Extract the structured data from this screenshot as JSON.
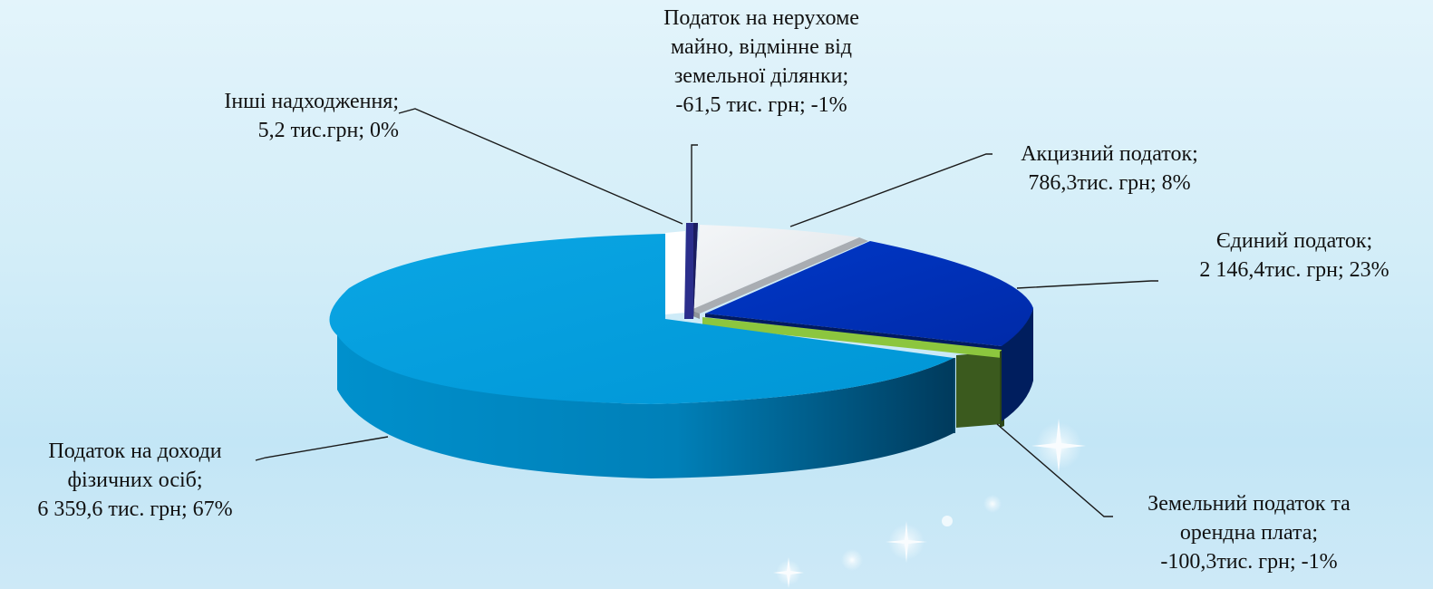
{
  "chart_data": {
    "type": "pie",
    "style": "3d-exploded",
    "unit": "тис. грн",
    "slices": [
      {
        "key": "pdfo",
        "value": 6359.6,
        "percent": 67,
        "color": "#00a0de",
        "label_lines": [
          "Податок на доходи",
          "фізичних осіб;",
          "6 359,6 тис. грн; 67%"
        ]
      },
      {
        "key": "other",
        "value": 5.2,
        "percent": 0,
        "color": "#ffffff",
        "label_lines": [
          "Інші надходження;",
          "5,2 тис.грн; 0%"
        ]
      },
      {
        "key": "property",
        "value": -61.5,
        "percent": -1,
        "color": "#2b2e8c",
        "label_lines": [
          "Податок на нерухоме",
          "майно, відмінне від",
          "земельної ділянки;",
          "-61,5 тис. грн; -1%"
        ]
      },
      {
        "key": "excise",
        "value": 786.3,
        "percent": 8,
        "color": "#e6eaee",
        "label_lines": [
          "Акцизний податок;",
          "786,3тис. грн; 8%"
        ]
      },
      {
        "key": "single",
        "value": 2146.4,
        "percent": 23,
        "color": "#0033c0",
        "label_lines": [
          "Єдиний податок;",
          "2 146,4тис. грн; 23%"
        ]
      },
      {
        "key": "land",
        "value": -100.3,
        "percent": -1,
        "color": "#8cc63e",
        "label_lines": [
          "Земельний податок та",
          "орендна плата;",
          "-100,3тис. грн; -1%"
        ]
      }
    ]
  }
}
